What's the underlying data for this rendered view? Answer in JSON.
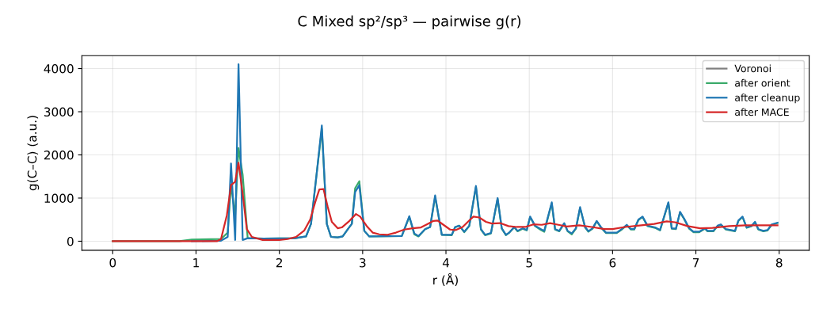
{
  "chart_data": {
    "type": "line",
    "title": "C Mixed sp²/sp³ — pairwise g(r)",
    "xlabel": "r (Å)",
    "ylabel": "g(C–C) (a.u.)",
    "xlim": [
      -0.37,
      8.36
    ],
    "ylim": [
      -210,
      4300
    ],
    "xticks": [
      0,
      1,
      2,
      3,
      4,
      5,
      6,
      7,
      8
    ],
    "yticks": [
      0,
      1000,
      2000,
      3000,
      4000
    ],
    "grid": true,
    "legend": "top right",
    "series": [
      {
        "name": "Voronoi",
        "color": "#7f7f7f"
      },
      {
        "name": "after orient",
        "color": "#3aaa6a",
        "x": [
          0,
          0.8,
          0.95,
          1.3,
          1.38,
          1.42,
          1.47,
          1.51,
          1.56,
          1.62,
          1.81,
          2.19,
          2.32,
          2.38,
          2.45,
          2.51,
          2.57,
          2.62,
          2.7,
          2.76,
          2.83,
          2.87,
          2.91,
          2.96,
          3.02,
          3.08,
          3.47,
          3.56,
          3.62,
          3.67,
          3.75,
          3.81,
          3.87,
          3.95,
          4.07,
          4.11,
          4.16,
          4.22,
          4.28,
          4.36,
          4.42,
          4.47,
          4.54,
          4.62,
          4.67,
          4.72,
          4.76,
          4.82,
          4.86,
          4.92,
          4.97,
          5.01,
          5.07,
          5.14,
          5.18,
          5.27,
          5.31,
          5.36,
          5.42,
          5.46,
          5.51,
          5.56,
          5.61,
          5.67,
          5.71,
          5.76,
          5.81,
          5.86,
          5.92,
          6.05,
          6.11,
          6.17,
          6.22,
          6.26,
          6.31,
          6.36,
          6.42,
          6.51,
          6.57,
          6.67,
          6.71,
          6.76,
          6.81,
          6.86,
          6.92,
          6.97,
          7.04,
          7.11,
          7.14,
          7.21,
          7.26,
          7.3,
          7.36,
          7.42,
          7.47,
          7.51,
          7.56,
          7.61,
          7.67,
          7.71,
          7.75,
          7.81,
          7.86,
          7.91,
          7.98
        ],
        "values": [
          0,
          0,
          40,
          50,
          200,
          1300,
          600,
          2160,
          1540,
          70,
          60,
          70,
          110,
          400,
          1600,
          2600,
          400,
          100,
          90,
          110,
          300,
          400,
          1230,
          1390,
          240,
          110,
          120,
          560,
          160,
          110,
          280,
          330,
          1030,
          150,
          140,
          320,
          360,
          210,
          350,
          1260,
          270,
          140,
          180,
          980,
          290,
          140,
          200,
          320,
          230,
          290,
          250,
          560,
          350,
          260,
          220,
          880,
          270,
          230,
          410,
          230,
          160,
          290,
          770,
          320,
          220,
          290,
          460,
          320,
          190,
          190,
          270,
          370,
          270,
          270,
          490,
          560,
          350,
          310,
          250,
          890,
          290,
          280,
          670,
          510,
          290,
          210,
          210,
          290,
          230,
          230,
          350,
          380,
          270,
          250,
          230,
          470,
          560,
          310,
          350,
          440,
          270,
          230,
          250,
          380,
          420
        ]
      },
      {
        "name": "after cleanup",
        "color": "#1f77b4",
        "x": [
          0.95,
          1.3,
          1.38,
          1.42,
          1.47,
          1.51,
          1.56,
          1.62,
          1.81,
          2.19,
          2.32,
          2.38,
          2.45,
          2.51,
          2.57,
          2.62,
          2.7,
          2.76,
          2.83,
          2.87,
          2.91,
          2.96,
          3.02,
          3.08,
          3.47,
          3.56,
          3.62,
          3.67,
          3.75,
          3.81,
          3.87,
          3.95,
          4.07,
          4.11,
          4.16,
          4.22,
          4.28,
          4.36,
          4.42,
          4.47,
          4.54,
          4.62,
          4.67,
          4.72,
          4.76,
          4.82,
          4.86,
          4.92,
          4.97,
          5.01,
          5.07,
          5.14,
          5.18,
          5.27,
          5.31,
          5.36,
          5.42,
          5.46,
          5.51,
          5.56,
          5.61,
          5.67,
          5.71,
          5.76,
          5.81,
          5.86,
          5.92,
          6.05,
          6.11,
          6.17,
          6.22,
          6.26,
          6.31,
          6.36,
          6.42,
          6.51,
          6.57,
          6.67,
          6.71,
          6.76,
          6.81,
          6.86,
          6.92,
          6.97,
          7.04,
          7.11,
          7.14,
          7.21,
          7.26,
          7.3,
          7.36,
          7.42,
          7.47,
          7.51,
          7.56,
          7.61,
          7.67,
          7.71,
          7.75,
          7.81,
          7.86,
          7.91,
          7.98
        ],
        "values": [
          0,
          10,
          100,
          1800,
          30,
          4100,
          30,
          70,
          60,
          70,
          110,
          400,
          1600,
          2680,
          400,
          100,
          90,
          110,
          300,
          400,
          1140,
          1300,
          240,
          110,
          120,
          580,
          180,
          120,
          280,
          330,
          1060,
          150,
          150,
          330,
          360,
          220,
          360,
          1280,
          280,
          150,
          190,
          1000,
          300,
          150,
          200,
          330,
          240,
          300,
          260,
          570,
          360,
          280,
          240,
          900,
          280,
          240,
          420,
          240,
          180,
          300,
          790,
          330,
          230,
          300,
          470,
          330,
          200,
          200,
          280,
          380,
          280,
          280,
          500,
          570,
          360,
          320,
          260,
          900,
          300,
          290,
          680,
          520,
          300,
          220,
          220,
          300,
          240,
          240,
          360,
          390,
          280,
          260,
          240,
          480,
          570,
          320,
          360,
          450,
          280,
          240,
          260,
          390,
          430
        ]
      },
      {
        "name": "after MACE",
        "color": "#d62728",
        "x": [
          0,
          1.25,
          1.3,
          1.37,
          1.42,
          1.47,
          1.51,
          1.56,
          1.61,
          1.67,
          1.8,
          2.0,
          2.1,
          2.2,
          2.3,
          2.37,
          2.43,
          2.48,
          2.53,
          2.58,
          2.63,
          2.7,
          2.75,
          2.83,
          2.92,
          2.97,
          3.05,
          3.12,
          3.2,
          3.3,
          3.4,
          3.5,
          3.6,
          3.7,
          3.78,
          3.85,
          3.9,
          3.97,
          4.05,
          4.12,
          4.2,
          4.28,
          4.33,
          4.4,
          4.48,
          4.55,
          4.65,
          4.75,
          4.85,
          4.95,
          5.05,
          5.15,
          5.25,
          5.35,
          5.45,
          5.6,
          5.75,
          5.9,
          6.0,
          6.15,
          6.3,
          6.5,
          6.65,
          6.75,
          6.9,
          7.05,
          7.2,
          7.4,
          7.6,
          7.8,
          7.98
        ],
        "values": [
          0,
          0,
          50,
          600,
          1300,
          1380,
          1820,
          1100,
          280,
          100,
          30,
          30,
          50,
          100,
          250,
          500,
          900,
          1200,
          1210,
          800,
          450,
          300,
          320,
          450,
          630,
          570,
          350,
          200,
          160,
          150,
          200,
          270,
          300,
          320,
          400,
          470,
          480,
          380,
          270,
          260,
          330,
          480,
          570,
          550,
          450,
          410,
          420,
          350,
          330,
          330,
          390,
          380,
          420,
          380,
          340,
          370,
          330,
          280,
          280,
          330,
          360,
          400,
          460,
          440,
          350,
          300,
          310,
          350,
          370,
          370,
          370
        ]
      }
    ]
  }
}
